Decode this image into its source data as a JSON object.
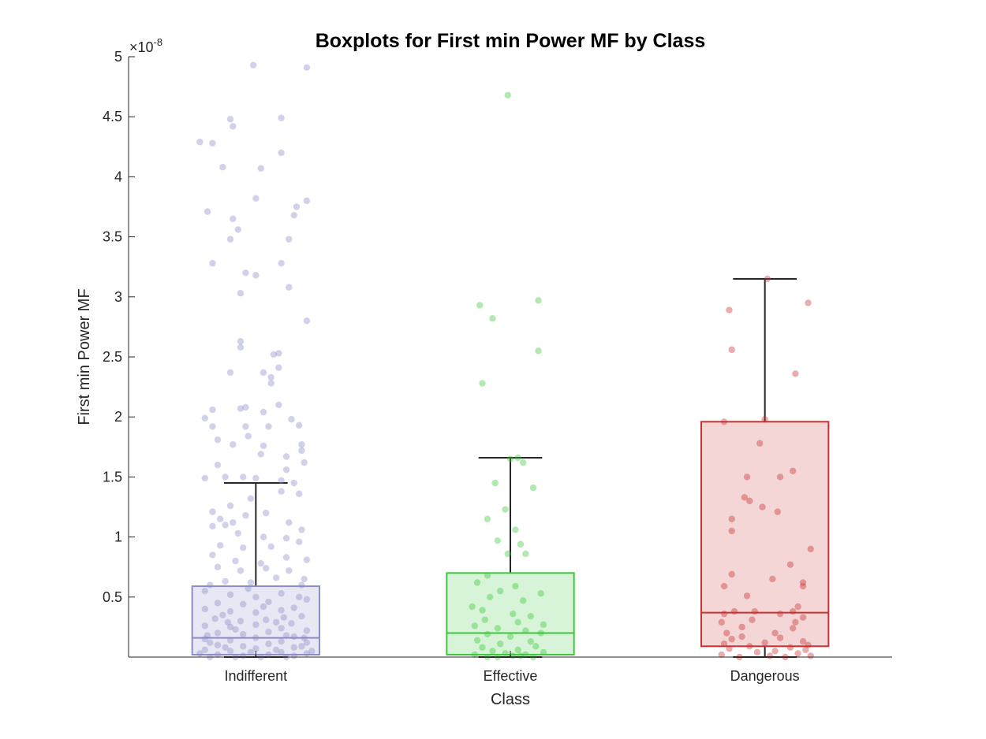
{
  "chart_data": {
    "type": "box",
    "title": "Boxplots for First min Power MF by Class",
    "xlabel": "Class",
    "ylabel": "First min Power MF",
    "exponent_label": "×10",
    "exponent_power": "-8",
    "scale": 1e-08,
    "ylim": [
      0,
      5
    ],
    "yticks": [
      0.5,
      1,
      1.5,
      2,
      2.5,
      3,
      3.5,
      4,
      4.5,
      5
    ],
    "ytick_labels": [
      "0.5",
      "1",
      "1.5",
      "2",
      "2.5",
      "3",
      "3.5",
      "4",
      "4.5",
      "5"
    ],
    "grid": false,
    "categories": [
      "Indifferent",
      "Effective",
      "Dangerous"
    ],
    "colors": [
      "#8c8cc8",
      "#3cc83c",
      "#c83232"
    ],
    "boxes": [
      {
        "name": "Indifferent",
        "q1": 0.02,
        "median": 0.16,
        "q3": 0.59,
        "whisker_low": 0.0,
        "whisker_high": 1.45
      },
      {
        "name": "Effective",
        "q1": 0.02,
        "median": 0.2,
        "q3": 0.7,
        "whisker_low": 0.0,
        "whisker_high": 1.66
      },
      {
        "name": "Dangerous",
        "q1": 0.09,
        "median": 0.37,
        "q3": 1.96,
        "whisker_low": 0.0,
        "whisker_high": 3.15
      }
    ],
    "points": [
      [
        [
          -0.01,
          4.93
        ],
        [
          0.2,
          4.91
        ],
        [
          -0.1,
          4.48
        ],
        [
          0.1,
          4.49
        ],
        [
          -0.09,
          4.42
        ],
        [
          -0.17,
          4.28
        ],
        [
          -0.22,
          4.29
        ],
        [
          -0.13,
          4.08
        ],
        [
          0.02,
          4.07
        ],
        [
          0.1,
          4.2
        ],
        [
          -0.19,
          3.71
        ],
        [
          -0.09,
          3.65
        ],
        [
          -0.07,
          3.56
        ],
        [
          -0.1,
          3.48
        ],
        [
          0.0,
          3.82
        ],
        [
          0.13,
          3.48
        ],
        [
          0.16,
          3.75
        ],
        [
          0.2,
          3.8
        ],
        [
          0.15,
          3.68
        ],
        [
          0.1,
          3.28
        ],
        [
          -0.17,
          3.28
        ],
        [
          -0.04,
          3.2
        ],
        [
          -0.0,
          3.18
        ],
        [
          -0.06,
          3.03
        ],
        [
          0.13,
          3.08
        ],
        [
          0.2,
          2.8
        ],
        [
          -0.06,
          2.63
        ],
        [
          -0.06,
          2.58
        ],
        [
          0.07,
          2.52
        ],
        [
          0.09,
          2.53
        ],
        [
          0.09,
          2.41
        ],
        [
          -0.1,
          2.37
        ],
        [
          0.03,
          2.37
        ],
        [
          0.06,
          2.28
        ],
        [
          0.06,
          2.33
        ],
        [
          -0.04,
          2.08
        ],
        [
          -0.06,
          2.07
        ],
        [
          -0.17,
          2.06
        ],
        [
          -0.2,
          1.99
        ],
        [
          0.03,
          2.04
        ],
        [
          0.09,
          2.1
        ],
        [
          0.14,
          1.98
        ],
        [
          -0.04,
          1.92
        ],
        [
          -0.17,
          1.92
        ],
        [
          0.05,
          1.92
        ],
        [
          0.17,
          1.93
        ],
        [
          0.18,
          1.77
        ],
        [
          0.18,
          1.72
        ],
        [
          -0.15,
          1.81
        ],
        [
          0.03,
          1.76
        ],
        [
          -0.03,
          1.84
        ],
        [
          -0.09,
          1.77
        ],
        [
          0.02,
          1.69
        ],
        [
          0.12,
          1.67
        ],
        [
          0.19,
          1.62
        ],
        [
          0.12,
          1.56
        ],
        [
          -0.15,
          1.6
        ],
        [
          -0.2,
          1.49
        ],
        [
          -0.12,
          1.5
        ],
        [
          -0.05,
          1.5
        ],
        [
          0.0,
          1.49
        ],
        [
          0.1,
          1.47
        ],
        [
          0.15,
          1.45
        ],
        [
          0.17,
          1.36
        ],
        [
          0.1,
          1.38
        ],
        [
          -0.02,
          1.32
        ],
        [
          -0.1,
          1.26
        ],
        [
          -0.17,
          1.21
        ],
        [
          -0.14,
          1.15
        ],
        [
          -0.12,
          1.1
        ],
        [
          -0.09,
          1.12
        ],
        [
          -0.04,
          1.18
        ],
        [
          0.04,
          1.2
        ],
        [
          0.13,
          1.12
        ],
        [
          0.18,
          1.06
        ],
        [
          -0.17,
          1.09
        ],
        [
          -0.07,
          1.03
        ],
        [
          0.03,
          1.0
        ],
        [
          0.12,
          0.99
        ],
        [
          0.17,
          0.96
        ],
        [
          -0.14,
          0.93
        ],
        [
          -0.05,
          0.91
        ],
        [
          0.06,
          0.92
        ],
        [
          -0.17,
          0.85
        ],
        [
          -0.08,
          0.8
        ],
        [
          0.02,
          0.78
        ],
        [
          0.12,
          0.83
        ],
        [
          0.2,
          0.81
        ],
        [
          -0.15,
          0.75
        ],
        [
          -0.06,
          0.72
        ],
        [
          0.04,
          0.74
        ],
        [
          0.13,
          0.72
        ],
        [
          0.19,
          0.65
        ],
        [
          -0.12,
          0.63
        ],
        [
          -0.02,
          0.62
        ],
        [
          0.08,
          0.66
        ],
        [
          -0.18,
          0.6
        ],
        [
          0.18,
          0.6
        ],
        [
          -0.2,
          0.55
        ],
        [
          -0.1,
          0.52
        ],
        [
          0.0,
          0.5
        ],
        [
          0.1,
          0.53
        ],
        [
          0.2,
          0.48
        ],
        [
          -0.15,
          0.45
        ],
        [
          -0.05,
          0.44
        ],
        [
          0.05,
          0.46
        ],
        [
          0.15,
          0.41
        ],
        [
          -0.2,
          0.4
        ],
        [
          -0.1,
          0.38
        ],
        [
          0.0,
          0.37
        ],
        [
          0.1,
          0.39
        ],
        [
          0.18,
          0.34
        ],
        [
          -0.16,
          0.32
        ],
        [
          -0.06,
          0.3
        ],
        [
          0.04,
          0.31
        ],
        [
          0.14,
          0.28
        ],
        [
          -0.2,
          0.26
        ],
        [
          -0.1,
          0.25
        ],
        [
          0.0,
          0.27
        ],
        [
          0.1,
          0.24
        ],
        [
          0.2,
          0.22
        ],
        [
          -0.15,
          0.2
        ],
        [
          -0.05,
          0.19
        ],
        [
          0.05,
          0.21
        ],
        [
          0.15,
          0.17
        ],
        [
          -0.2,
          0.15
        ],
        [
          -0.1,
          0.14
        ],
        [
          0.0,
          0.16
        ],
        [
          0.1,
          0.13
        ],
        [
          0.2,
          0.12
        ],
        [
          -0.15,
          0.1
        ],
        [
          -0.05,
          0.09
        ],
        [
          0.05,
          0.11
        ],
        [
          0.15,
          0.08
        ],
        [
          -0.2,
          0.06
        ],
        [
          -0.1,
          0.05
        ],
        [
          0.0,
          0.07
        ],
        [
          0.1,
          0.04
        ],
        [
          0.2,
          0.03
        ],
        [
          -0.15,
          0.02
        ],
        [
          -0.05,
          0.01
        ],
        [
          0.05,
          0.02
        ],
        [
          0.15,
          0.01
        ],
        [
          -0.18,
          0.0
        ],
        [
          -0.08,
          0.0
        ],
        [
          0.02,
          0.0
        ],
        [
          0.12,
          0.0
        ],
        [
          -0.22,
          0.03
        ],
        [
          0.22,
          0.05
        ],
        [
          -0.12,
          0.08
        ],
        [
          0.08,
          0.06
        ],
        [
          -0.02,
          0.04
        ],
        [
          0.18,
          0.09
        ],
        [
          -0.18,
          0.12
        ],
        [
          0.12,
          0.18
        ],
        [
          -0.08,
          0.23
        ],
        [
          0.08,
          0.29
        ],
        [
          -0.13,
          0.35
        ],
        [
          0.03,
          0.42
        ],
        [
          0.17,
          0.5
        ],
        [
          -0.03,
          0.57
        ],
        [
          -0.19,
          0.18
        ],
        [
          0.19,
          0.16
        ],
        [
          -0.11,
          0.29
        ],
        [
          0.11,
          0.33
        ]
      ],
      [
        [
          -0.01,
          4.68
        ],
        [
          -0.12,
          2.93
        ],
        [
          -0.07,
          2.82
        ],
        [
          0.11,
          2.97
        ],
        [
          0.11,
          2.55
        ],
        [
          -0.11,
          2.28
        ],
        [
          0.0,
          1.65
        ],
        [
          0.05,
          1.62
        ],
        [
          0.03,
          1.66
        ],
        [
          -0.06,
          1.45
        ],
        [
          0.09,
          1.41
        ],
        [
          -0.09,
          1.15
        ],
        [
          -0.02,
          1.23
        ],
        [
          -0.05,
          0.97
        ],
        [
          0.02,
          1.06
        ],
        [
          0.04,
          0.94
        ],
        [
          0.06,
          0.86
        ],
        [
          -0.01,
          0.86
        ],
        [
          -0.09,
          0.68
        ],
        [
          -0.13,
          0.62
        ],
        [
          0.02,
          0.59
        ],
        [
          0.12,
          0.53
        ],
        [
          -0.04,
          0.55
        ],
        [
          -0.08,
          0.5
        ],
        [
          0.05,
          0.47
        ],
        [
          -0.15,
          0.42
        ],
        [
          -0.11,
          0.39
        ],
        [
          0.01,
          0.36
        ],
        [
          0.08,
          0.34
        ],
        [
          -0.1,
          0.31
        ],
        [
          0.03,
          0.29
        ],
        [
          0.13,
          0.27
        ],
        [
          -0.14,
          0.26
        ],
        [
          -0.05,
          0.24
        ],
        [
          0.06,
          0.22
        ],
        [
          0.12,
          0.2
        ],
        [
          -0.09,
          0.19
        ],
        [
          0.0,
          0.17
        ],
        [
          -0.13,
          0.14
        ],
        [
          0.08,
          0.13
        ],
        [
          -0.04,
          0.11
        ],
        [
          0.1,
          0.09
        ],
        [
          -0.11,
          0.08
        ],
        [
          0.03,
          0.06
        ],
        [
          -0.07,
          0.05
        ],
        [
          0.13,
          0.04
        ],
        [
          -0.02,
          0.03
        ],
        [
          0.06,
          0.02
        ],
        [
          -0.14,
          0.02
        ],
        [
          0.01,
          0.01
        ],
        [
          -0.09,
          0.0
        ],
        [
          0.09,
          0.0
        ],
        [
          -0.05,
          0.0
        ],
        [
          0.04,
          0.01
        ]
      ],
      [
        [
          0.01,
          3.15
        ],
        [
          0.17,
          2.95
        ],
        [
          -0.14,
          2.89
        ],
        [
          -0.13,
          2.56
        ],
        [
          0.12,
          2.36
        ],
        [
          0.0,
          1.98
        ],
        [
          -0.16,
          1.96
        ],
        [
          -0.02,
          1.78
        ],
        [
          0.11,
          1.55
        ],
        [
          0.06,
          1.5
        ],
        [
          -0.07,
          1.5
        ],
        [
          -0.08,
          1.33
        ],
        [
          -0.06,
          1.3
        ],
        [
          -0.01,
          1.25
        ],
        [
          0.05,
          1.21
        ],
        [
          -0.13,
          1.15
        ],
        [
          -0.13,
          1.05
        ],
        [
          0.18,
          0.9
        ],
        [
          0.1,
          0.77
        ],
        [
          -0.13,
          0.69
        ],
        [
          0.03,
          0.65
        ],
        [
          0.15,
          0.62
        ],
        [
          0.15,
          0.59
        ],
        [
          -0.16,
          0.59
        ],
        [
          -0.07,
          0.51
        ],
        [
          0.13,
          0.42
        ],
        [
          0.11,
          0.38
        ],
        [
          -0.12,
          0.38
        ],
        [
          -0.04,
          0.38
        ],
        [
          -0.16,
          0.36
        ],
        [
          0.06,
          0.36
        ],
        [
          0.15,
          0.33
        ],
        [
          -0.05,
          0.31
        ],
        [
          0.12,
          0.29
        ],
        [
          -0.17,
          0.29
        ],
        [
          -0.09,
          0.25
        ],
        [
          0.11,
          0.24
        ],
        [
          -0.15,
          0.2
        ],
        [
          0.04,
          0.2
        ],
        [
          -0.09,
          0.17
        ],
        [
          0.06,
          0.16
        ],
        [
          -0.13,
          0.15
        ],
        [
          0.15,
          0.13
        ],
        [
          0.0,
          0.12
        ],
        [
          -0.16,
          0.11
        ],
        [
          0.17,
          0.1
        ],
        [
          -0.06,
          0.09
        ],
        [
          0.1,
          0.08
        ],
        [
          -0.14,
          0.07
        ],
        [
          0.16,
          0.06
        ],
        [
          0.04,
          0.05
        ],
        [
          -0.03,
          0.04
        ],
        [
          0.13,
          0.03
        ],
        [
          -0.17,
          0.02
        ],
        [
          0.02,
          0.01
        ],
        [
          0.08,
          0.0
        ],
        [
          -0.1,
          0.0
        ],
        [
          0.18,
          0.01
        ]
      ]
    ]
  }
}
